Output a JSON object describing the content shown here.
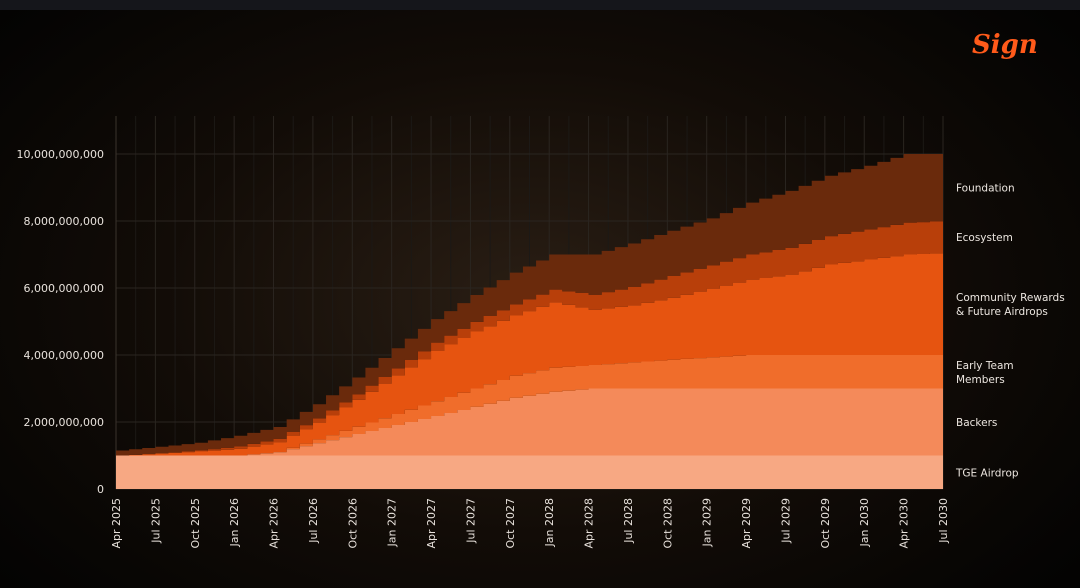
{
  "brand": {
    "logo_text": "Sign"
  },
  "chart_data": {
    "type": "area",
    "x": [
      "Apr 2025",
      "Jul 2025",
      "Oct 2025",
      "Jan 2026",
      "Apr 2026",
      "Jul 2026",
      "Oct 2026",
      "Jan 2027",
      "Apr 2027",
      "Jul 2027",
      "Oct 2027",
      "Jan 2028",
      "Apr 2028",
      "Jul 2028",
      "Oct 2028",
      "Jan 2029",
      "Apr 2029",
      "Jul 2029",
      "Oct 2029",
      "Jan 2030",
      "Apr 2030",
      "Jul 2030"
    ],
    "y_ticks": [
      0,
      2000000000,
      4000000000,
      6000000000,
      8000000000,
      10000000000
    ],
    "y_tick_labels": [
      "0",
      "2,000,000,000",
      "4,000,000,000",
      "6,000,000,000",
      "8,000,000,000",
      "10,000,000,000"
    ],
    "ylim": [
      0,
      11000000000
    ],
    "stacked": true,
    "grid": true,
    "legend_placement": "right",
    "series": [
      {
        "name": "TGE Airdrop",
        "color": "#f7a883",
        "values": [
          1000000000,
          1000000000,
          1000000000,
          1000000000,
          1000000000,
          1000000000,
          1000000000,
          1000000000,
          1000000000,
          1000000000,
          1000000000,
          1000000000,
          1000000000,
          1000000000,
          1000000000,
          1000000000,
          1000000000,
          1000000000,
          1000000000,
          1000000000,
          1000000000,
          1000000000
        ]
      },
      {
        "name": "Backers",
        "color": "#f48a5a",
        "values": [
          0,
          0,
          0,
          0,
          100000000,
          370000000,
          640000000,
          910000000,
          1180000000,
          1450000000,
          1720000000,
          1900000000,
          2000000000,
          2000000000,
          2000000000,
          2000000000,
          2000000000,
          2000000000,
          2000000000,
          2000000000,
          2000000000,
          2000000000
        ]
      },
      {
        "name": "Early Team Members",
        "color": "#f06d2b",
        "values": [
          0,
          0,
          0,
          0,
          0,
          110000000,
          220000000,
          330000000,
          440000000,
          550000000,
          660000000,
          720000000,
          700000000,
          780000000,
          860000000,
          930000000,
          1000000000,
          1000000000,
          1000000000,
          1000000000,
          1000000000,
          1000000000
        ]
      },
      {
        "name": "Community Rewards & Future Airdrops",
        "color": "#e65410",
        "values": [
          0,
          60000000,
          120000000,
          200000000,
          300000000,
          500000000,
          800000000,
          1150000000,
          1500000000,
          1700000000,
          1800000000,
          1950000000,
          1650000000,
          1700000000,
          1850000000,
          2050000000,
          2250000000,
          2400000000,
          2700000000,
          2850000000,
          3000000000,
          3050000000
        ]
      },
      {
        "name": "Ecosystem",
        "color": "#b83f0a",
        "values": [
          0,
          0,
          30000000,
          70000000,
          100000000,
          130000000,
          170000000,
          210000000,
          250000000,
          290000000,
          330000000,
          380000000,
          450000000,
          550000000,
          650000000,
          700000000,
          750000000,
          800000000,
          850000000,
          900000000,
          950000000,
          950000000
        ]
      },
      {
        "name": "Foundation",
        "color": "#6a2a0c",
        "values": [
          150000000,
          200000000,
          230000000,
          320000000,
          350000000,
          420000000,
          500000000,
          600000000,
          700000000,
          800000000,
          950000000,
          1050000000,
          1200000000,
          1300000000,
          1350000000,
          1400000000,
          1550000000,
          1700000000,
          1800000000,
          1900000000,
          2050000000,
          2000000000
        ]
      }
    ],
    "legend_labels": [
      {
        "series": "Foundation",
        "lines": [
          "Foundation"
        ]
      },
      {
        "series": "Ecosystem",
        "lines": [
          "Ecosystem"
        ]
      },
      {
        "series": "Community Rewards & Future Airdrops",
        "lines": [
          "Community Rewards",
          "& Future Airdrops"
        ]
      },
      {
        "series": "Early Team Members",
        "lines": [
          "Early Team",
          "Members"
        ]
      },
      {
        "series": "Backers",
        "lines": [
          "Backers"
        ]
      },
      {
        "series": "TGE Airdrop",
        "lines": [
          "TGE Airdrop"
        ]
      }
    ]
  }
}
